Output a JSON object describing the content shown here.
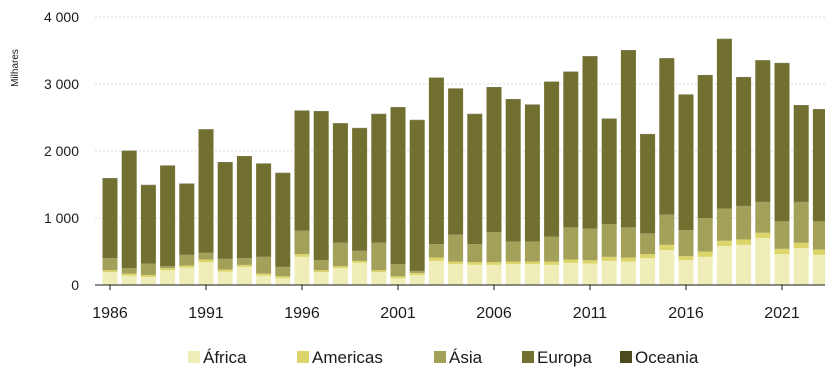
{
  "chart_data": {
    "type": "bar",
    "stacked": true,
    "ylabel": "Milhares",
    "ylim": [
      0,
      4000
    ],
    "yticks": [
      0,
      1000,
      2000,
      3000,
      4000
    ],
    "ytick_labels": [
      "0",
      "1 000",
      "2 000",
      "3 000",
      "4 000"
    ],
    "xtick_labels": [
      "1986",
      "1991",
      "1996",
      "2001",
      "2006",
      "2011",
      "2016",
      "2021"
    ],
    "legend_position": "bottom",
    "grid": true,
    "categories": [
      1986,
      1987,
      1988,
      1989,
      1990,
      1991,
      1992,
      1993,
      1994,
      1995,
      1996,
      1997,
      1998,
      1999,
      2000,
      2001,
      2002,
      2003,
      2004,
      2005,
      2006,
      2007,
      2008,
      2009,
      2010,
      2011,
      2012,
      2013,
      2014,
      2015,
      2016,
      2017,
      2018,
      2019,
      2020,
      2021,
      2022,
      2023
    ],
    "series": [
      {
        "name": "África",
        "color": "#f0eeb8",
        "values": [
          190,
          140,
          120,
          220,
          260,
          340,
          200,
          270,
          140,
          100,
          420,
          190,
          250,
          330,
          190,
          100,
          150,
          360,
          310,
          300,
          300,
          310,
          310,
          300,
          330,
          320,
          360,
          350,
          400,
          520,
          370,
          420,
          580,
          600,
          700,
          460,
          550,
          450
        ]
      },
      {
        "name": "Americas",
        "color": "#dcd66a",
        "values": [
          30,
          30,
          30,
          30,
          30,
          40,
          30,
          30,
          30,
          30,
          40,
          30,
          30,
          30,
          30,
          30,
          30,
          50,
          40,
          40,
          40,
          40,
          40,
          50,
          50,
          50,
          60,
          60,
          60,
          80,
          60,
          80,
          80,
          80,
          80,
          80,
          80,
          80
        ]
      },
      {
        "name": "Ásia",
        "color": "#a3a05a",
        "values": [
          180,
          80,
          170,
          30,
          160,
          100,
          160,
          100,
          250,
          140,
          350,
          150,
          350,
          150,
          410,
          180,
          30,
          200,
          400,
          270,
          450,
          300,
          300,
          370,
          480,
          470,
          490,
          450,
          310,
          450,
          390,
          500,
          480,
          500,
          460,
          410,
          610,
          420
        ]
      },
      {
        "name": "Europa",
        "color": "#727031",
        "values": [
          1190,
          1750,
          1170,
          1500,
          1060,
          1840,
          1440,
          1520,
          1390,
          1400,
          1790,
          2220,
          1780,
          1830,
          1920,
          2340,
          2250,
          2480,
          2180,
          1940,
          2160,
          2120,
          2040,
          2310,
          2320,
          2570,
          1570,
          2640,
          1480,
          2330,
          2020,
          2130,
          2530,
          1920,
          2110,
          2360,
          1440,
          1670
        ]
      },
      {
        "name": "Oceania",
        "color": "#4c4a1e",
        "values": [
          5,
          5,
          5,
          5,
          5,
          5,
          5,
          5,
          5,
          5,
          5,
          5,
          5,
          5,
          5,
          5,
          5,
          5,
          5,
          5,
          5,
          5,
          5,
          5,
          5,
          5,
          5,
          5,
          5,
          5,
          5,
          5,
          5,
          5,
          5,
          5,
          5,
          5
        ]
      }
    ]
  }
}
